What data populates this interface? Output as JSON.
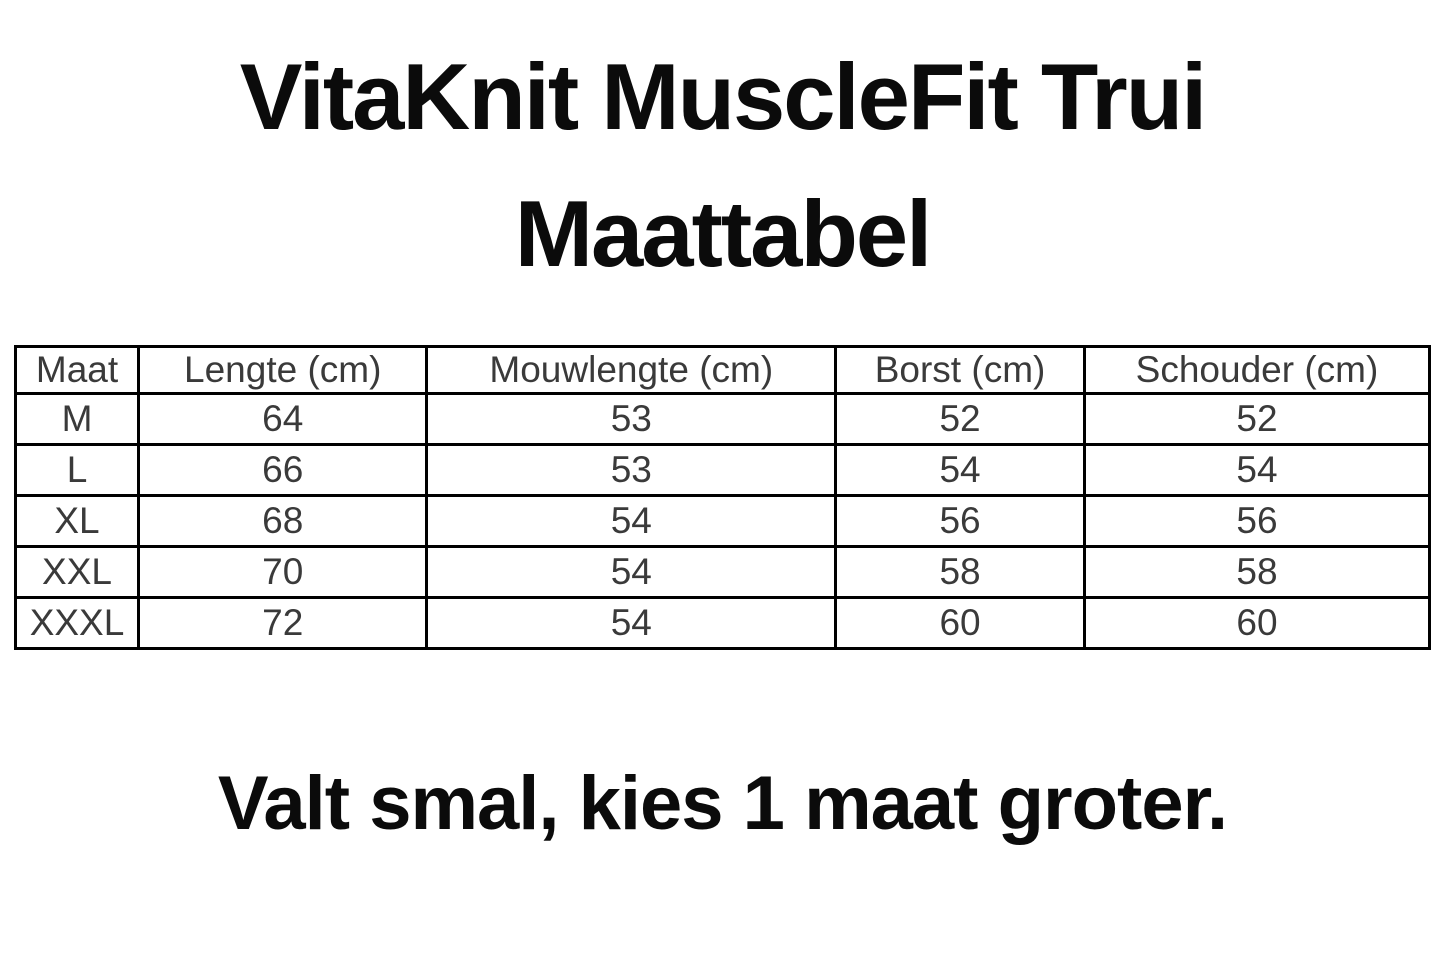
{
  "page": {
    "title_line1": "VitaKnit MuscleFit Trui",
    "title_line2": "Maattabel",
    "note": "Valt smal, kies 1 maat groter."
  },
  "size_table": {
    "columns": [
      "Maat",
      "Lengte (cm)",
      "Mouwlengte (cm)",
      "Borst (cm)",
      "Schouder (cm)"
    ],
    "rows": [
      [
        "M",
        "64",
        "53",
        "52",
        "52"
      ],
      [
        "L",
        "66",
        "53",
        "54",
        "54"
      ],
      [
        "XL",
        "68",
        "54",
        "56",
        "56"
      ],
      [
        "XXL",
        "70",
        "54",
        "58",
        "58"
      ],
      [
        "XXXL",
        "72",
        "54",
        "60",
        "60"
      ]
    ]
  },
  "colors": {
    "background": "#ffffff",
    "title_text": "#0b0b0b",
    "table_text": "#3a3a3a",
    "table_border": "#000000"
  }
}
